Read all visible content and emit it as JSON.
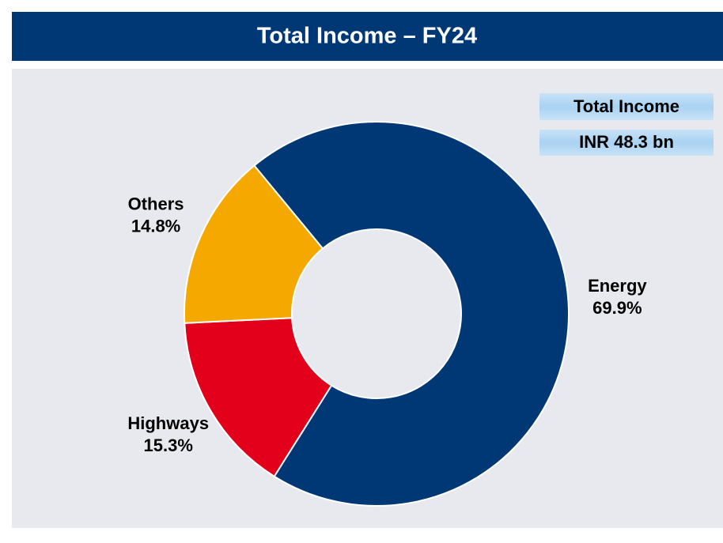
{
  "chart_data": {
    "type": "pie",
    "title": "Total Income – FY24",
    "annotations": [
      "Total Income",
      "INR 48.3 bn"
    ],
    "categories": [
      "Energy",
      "Highways",
      "Others"
    ],
    "values": [
      69.9,
      15.3,
      14.8
    ],
    "value_labels": [
      "69.9%",
      "15.3%",
      "14.8%"
    ],
    "colors": [
      "#003876",
      "#e2001a",
      "#f5a800"
    ]
  }
}
